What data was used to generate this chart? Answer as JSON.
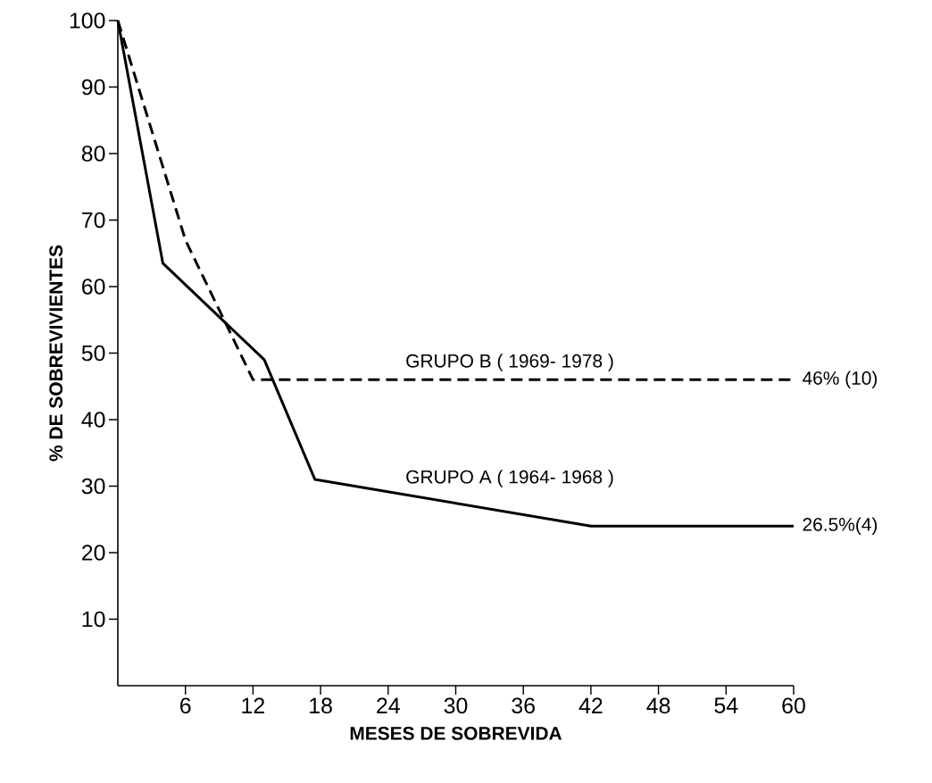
{
  "chart_data": {
    "type": "line",
    "xlabel": "MESES DE SOBREVIDA",
    "ylabel": "% DE SOBREVIVIENTES",
    "xlim": [
      0,
      60
    ],
    "ylim": [
      0,
      100
    ],
    "xticks": [
      6,
      12,
      18,
      24,
      30,
      36,
      42,
      48,
      54,
      60
    ],
    "yticks": [
      10,
      20,
      30,
      40,
      50,
      60,
      70,
      80,
      90,
      100
    ],
    "series": [
      {
        "name": "GRUPO A ( 1964- 1968 )",
        "color": "#000000",
        "line_style": "solid",
        "x": [
          0,
          4,
          13,
          17.5,
          42,
          60
        ],
        "values": [
          100,
          63.5,
          49,
          31,
          24,
          24
        ]
      },
      {
        "name": "GRUPO B ( 1969- 1978 )",
        "color": "#000000",
        "line_style": "dashed",
        "x": [
          0,
          6,
          12,
          60
        ],
        "values": [
          100,
          67,
          46,
          46
        ]
      }
    ],
    "annotations": [
      {
        "text": "46% (10)",
        "x": 60,
        "y": 46
      },
      {
        "text": "26.5%(4)",
        "x": 60,
        "y": 24
      }
    ]
  }
}
